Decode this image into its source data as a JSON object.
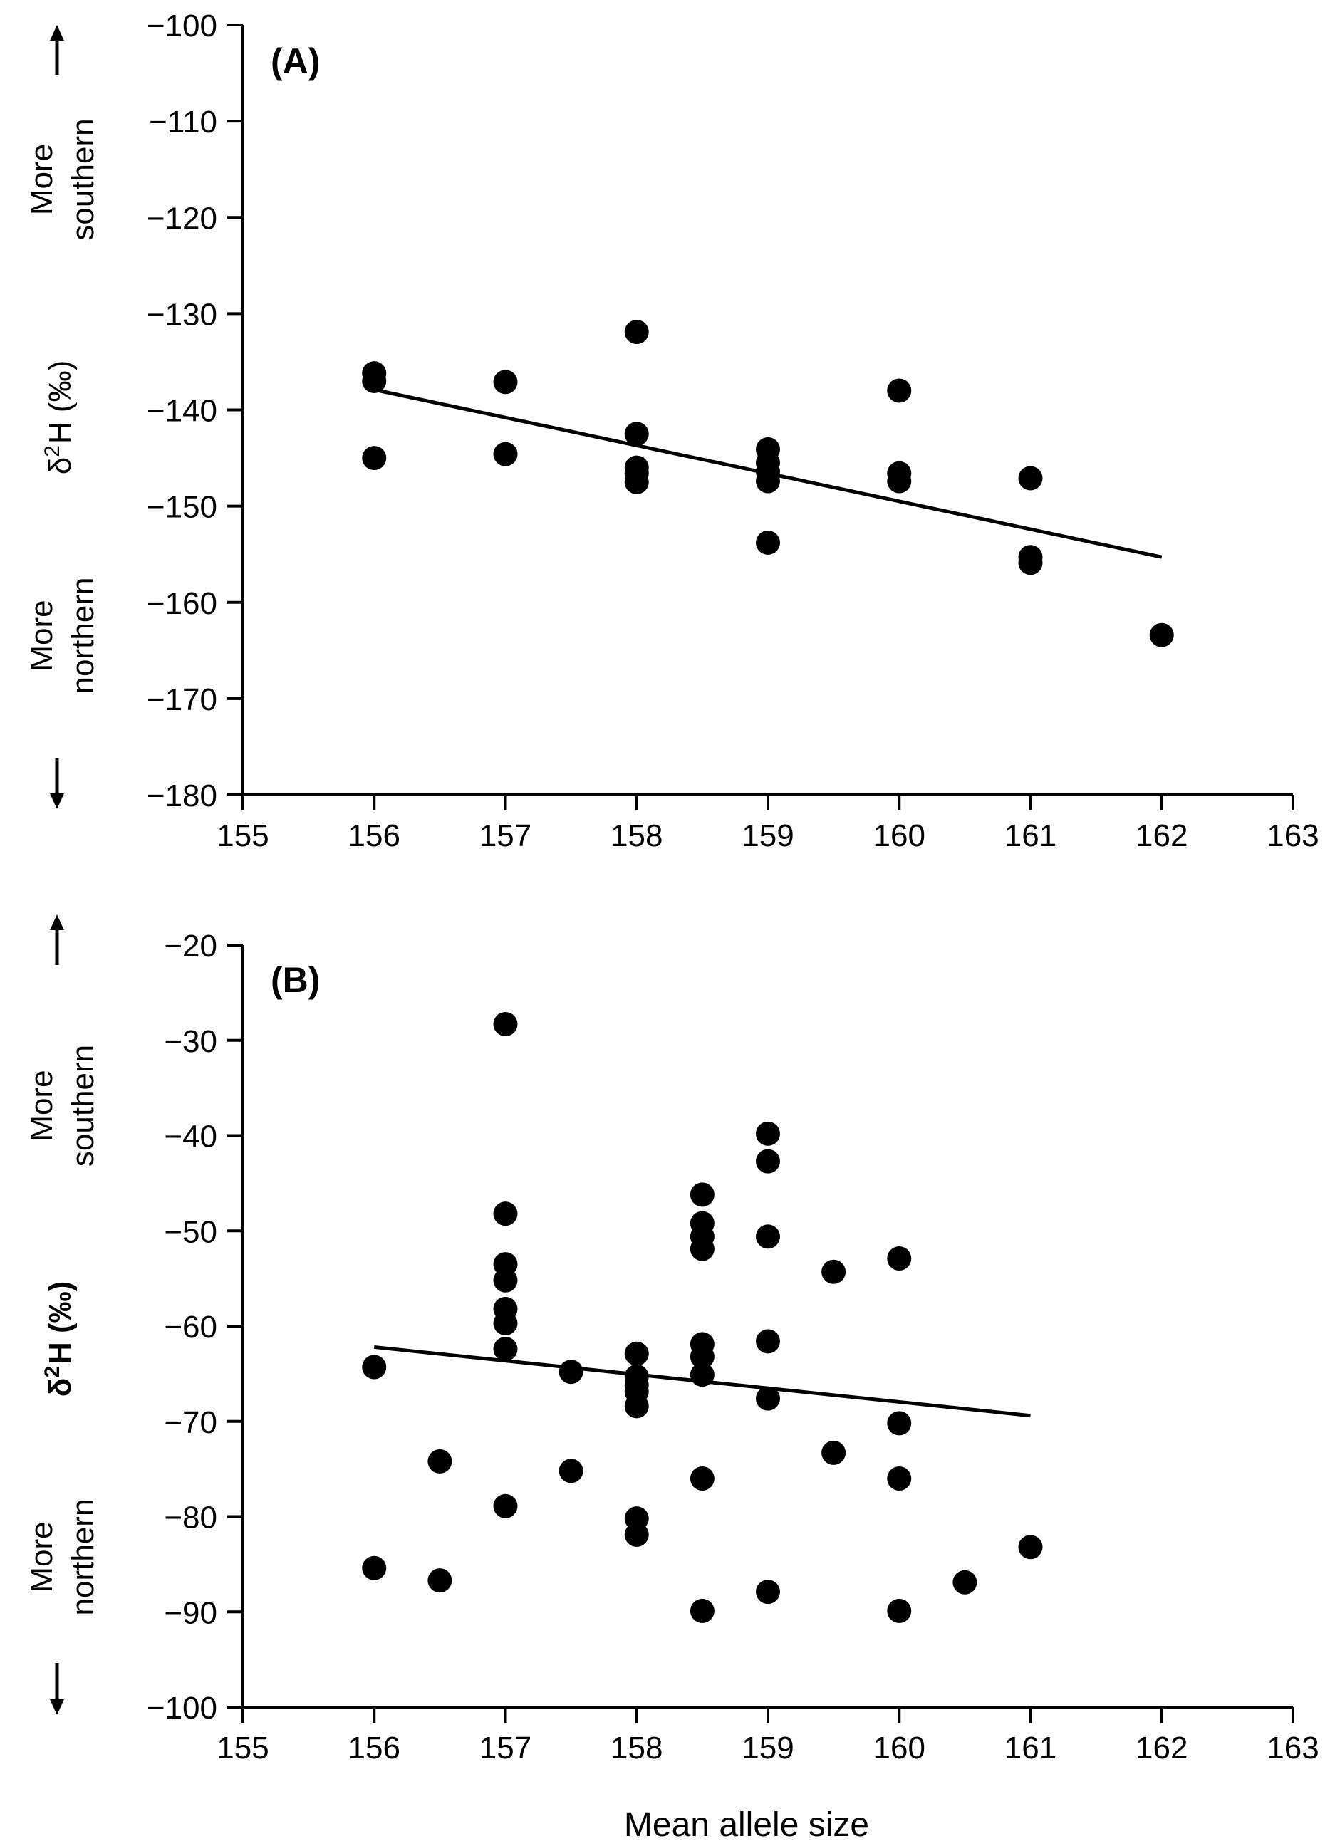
{
  "chart_data": [
    {
      "type": "scatter",
      "panel_label": "(A)",
      "ylabel": "δ2H (‰)",
      "ylabel_base": "δ",
      "ylabel_sup": "2",
      "ylabel_rest": "H (‰)",
      "ylabel_bold": false,
      "direction_top": [
        "More",
        "southern"
      ],
      "direction_bottom": [
        "More",
        "northern"
      ],
      "xlim": [
        155,
        163
      ],
      "ylim": [
        -180,
        -100
      ],
      "x_ticks": [
        155,
        156,
        157,
        158,
        159,
        160,
        161,
        162,
        163
      ],
      "y_ticks": [
        -180,
        -170,
        -160,
        -150,
        -140,
        -130,
        -120,
        -110,
        -100
      ],
      "x_tick_labels": [
        "155",
        "156",
        "157",
        "158",
        "159",
        "160",
        "161",
        "162",
        "163"
      ],
      "y_tick_labels": [
        "−180",
        "−170",
        "−160",
        "−150",
        "−140",
        "−130",
        "−120",
        "−110",
        "−100"
      ],
      "points": [
        [
          156,
          -136.2
        ],
        [
          156,
          -137.0
        ],
        [
          156,
          -145.0
        ],
        [
          157,
          -137.1
        ],
        [
          157,
          -144.6
        ],
        [
          158,
          -131.9
        ],
        [
          158,
          -142.5
        ],
        [
          158,
          -146.0
        ],
        [
          158,
          -146.6
        ],
        [
          158,
          -147.5
        ],
        [
          159,
          -144.1
        ],
        [
          159,
          -145.5
        ],
        [
          159,
          -146.4
        ],
        [
          159,
          -147.4
        ],
        [
          159,
          -153.8
        ],
        [
          160,
          -138.0
        ],
        [
          160,
          -146.6
        ],
        [
          160,
          -147.4
        ],
        [
          161,
          -147.1
        ],
        [
          161,
          -155.3
        ],
        [
          161,
          -155.9
        ],
        [
          162,
          -163.4
        ]
      ],
      "trendline": [
        [
          156,
          -137.9
        ],
        [
          162,
          -155.3
        ]
      ]
    },
    {
      "type": "scatter",
      "panel_label": "(B)",
      "ylabel": "δ2H (‰)",
      "ylabel_base": "δ",
      "ylabel_sup": "2",
      "ylabel_rest": "H (‰)",
      "ylabel_bold": true,
      "direction_top": [
        "More",
        "southern"
      ],
      "direction_bottom": [
        "More",
        "northern"
      ],
      "xlabel": "Mean allele size",
      "xlim": [
        155,
        163
      ],
      "ylim": [
        -100,
        -20
      ],
      "x_ticks": [
        155,
        156,
        157,
        158,
        159,
        160,
        161,
        162,
        163
      ],
      "y_ticks": [
        -100,
        -90,
        -80,
        -70,
        -60,
        -50,
        -40,
        -30,
        -20
      ],
      "x_tick_labels": [
        "155",
        "156",
        "157",
        "158",
        "159",
        "160",
        "161",
        "162",
        "163"
      ],
      "y_tick_labels": [
        "−100",
        "−90",
        "−80",
        "−70",
        "−60",
        "−50",
        "−40",
        "−30",
        "−20"
      ],
      "points": [
        [
          156,
          -64.3
        ],
        [
          156,
          -85.4
        ],
        [
          156.5,
          -74.2
        ],
        [
          156.5,
          -86.7
        ],
        [
          157,
          -28.3
        ],
        [
          157,
          -48.2
        ],
        [
          157,
          -53.5
        ],
        [
          157,
          -55.2
        ],
        [
          157,
          -58.2
        ],
        [
          157,
          -59.7
        ],
        [
          157,
          -62.4
        ],
        [
          157,
          -78.9
        ],
        [
          157.5,
          -64.8
        ],
        [
          157.5,
          -75.2
        ],
        [
          158,
          -62.9
        ],
        [
          158,
          -65.3
        ],
        [
          158,
          -66.2
        ],
        [
          158,
          -66.9
        ],
        [
          158,
          -68.4
        ],
        [
          158,
          -80.2
        ],
        [
          158,
          -81.9
        ],
        [
          158.5,
          -46.2
        ],
        [
          158.5,
          -49.2
        ],
        [
          158.5,
          -50.6
        ],
        [
          158.5,
          -51.9
        ],
        [
          158.5,
          -61.9
        ],
        [
          158.5,
          -63.2
        ],
        [
          158.5,
          -65.1
        ],
        [
          158.5,
          -76.0
        ],
        [
          158.5,
          -89.9
        ],
        [
          159,
          -39.8
        ],
        [
          159,
          -42.7
        ],
        [
          159,
          -50.6
        ],
        [
          159,
          -61.6
        ],
        [
          159,
          -67.6
        ],
        [
          159,
          -87.9
        ],
        [
          159.5,
          -54.3
        ],
        [
          159.5,
          -73.3
        ],
        [
          160,
          -52.9
        ],
        [
          160,
          -70.2
        ],
        [
          160,
          -76.0
        ],
        [
          160,
          -89.9
        ],
        [
          160.5,
          -86.9
        ],
        [
          161,
          -83.2
        ]
      ],
      "trendline": [
        [
          156,
          -62.2
        ],
        [
          161,
          -69.4
        ]
      ]
    }
  ]
}
